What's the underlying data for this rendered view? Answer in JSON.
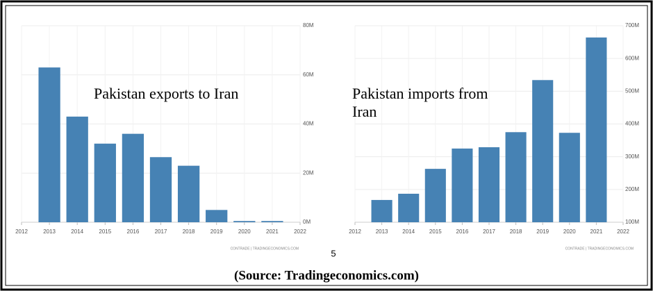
{
  "chart_data": [
    {
      "type": "bar",
      "annotation": "Pakistan exports to Iran",
      "credit": "CONTRADE | TRADINGECONOMICS.COM",
      "x": [
        2013,
        2014,
        2015,
        2016,
        2017,
        2018,
        2019,
        2020,
        2021
      ],
      "values": [
        63,
        43,
        32,
        36,
        26.5,
        23,
        5,
        0.5,
        0.5
      ],
      "color": "#4682b4",
      "xlim": [
        2012,
        2022
      ],
      "xticks": [
        2012,
        2013,
        2014,
        2015,
        2016,
        2017,
        2018,
        2019,
        2020,
        2021,
        2022
      ],
      "ylim": [
        0,
        80
      ],
      "yticks": [
        {
          "value": 0,
          "label": "0M"
        },
        {
          "value": 20,
          "label": "20M"
        },
        {
          "value": 40,
          "label": "40M"
        },
        {
          "value": 60,
          "label": "60M"
        },
        {
          "value": 80,
          "label": "80M"
        }
      ],
      "grid": true
    },
    {
      "type": "bar",
      "annotation": "Pakistan imports from Iran",
      "credit": "CONTRADE | TRADINGECONOMICS.COM",
      "x": [
        2013,
        2014,
        2015,
        2016,
        2017,
        2018,
        2019,
        2020,
        2021
      ],
      "values": [
        168,
        187,
        263,
        325,
        329,
        375,
        534,
        373,
        664
      ],
      "color": "#4682b4",
      "xlim": [
        2012,
        2022
      ],
      "xticks": [
        2012,
        2013,
        2014,
        2015,
        2016,
        2017,
        2018,
        2019,
        2020,
        2021,
        2022
      ],
      "ylim": [
        100,
        700
      ],
      "yticks": [
        {
          "value": 100,
          "label": "100M"
        },
        {
          "value": 200,
          "label": "200M"
        },
        {
          "value": 300,
          "label": "300M"
        },
        {
          "value": 400,
          "label": "400M"
        },
        {
          "value": 500,
          "label": "500M"
        },
        {
          "value": 600,
          "label": "600M"
        },
        {
          "value": 700,
          "label": "700M"
        }
      ],
      "grid": true
    }
  ],
  "page_number": "5",
  "source": "(Source: Tradingeconomics.com)"
}
